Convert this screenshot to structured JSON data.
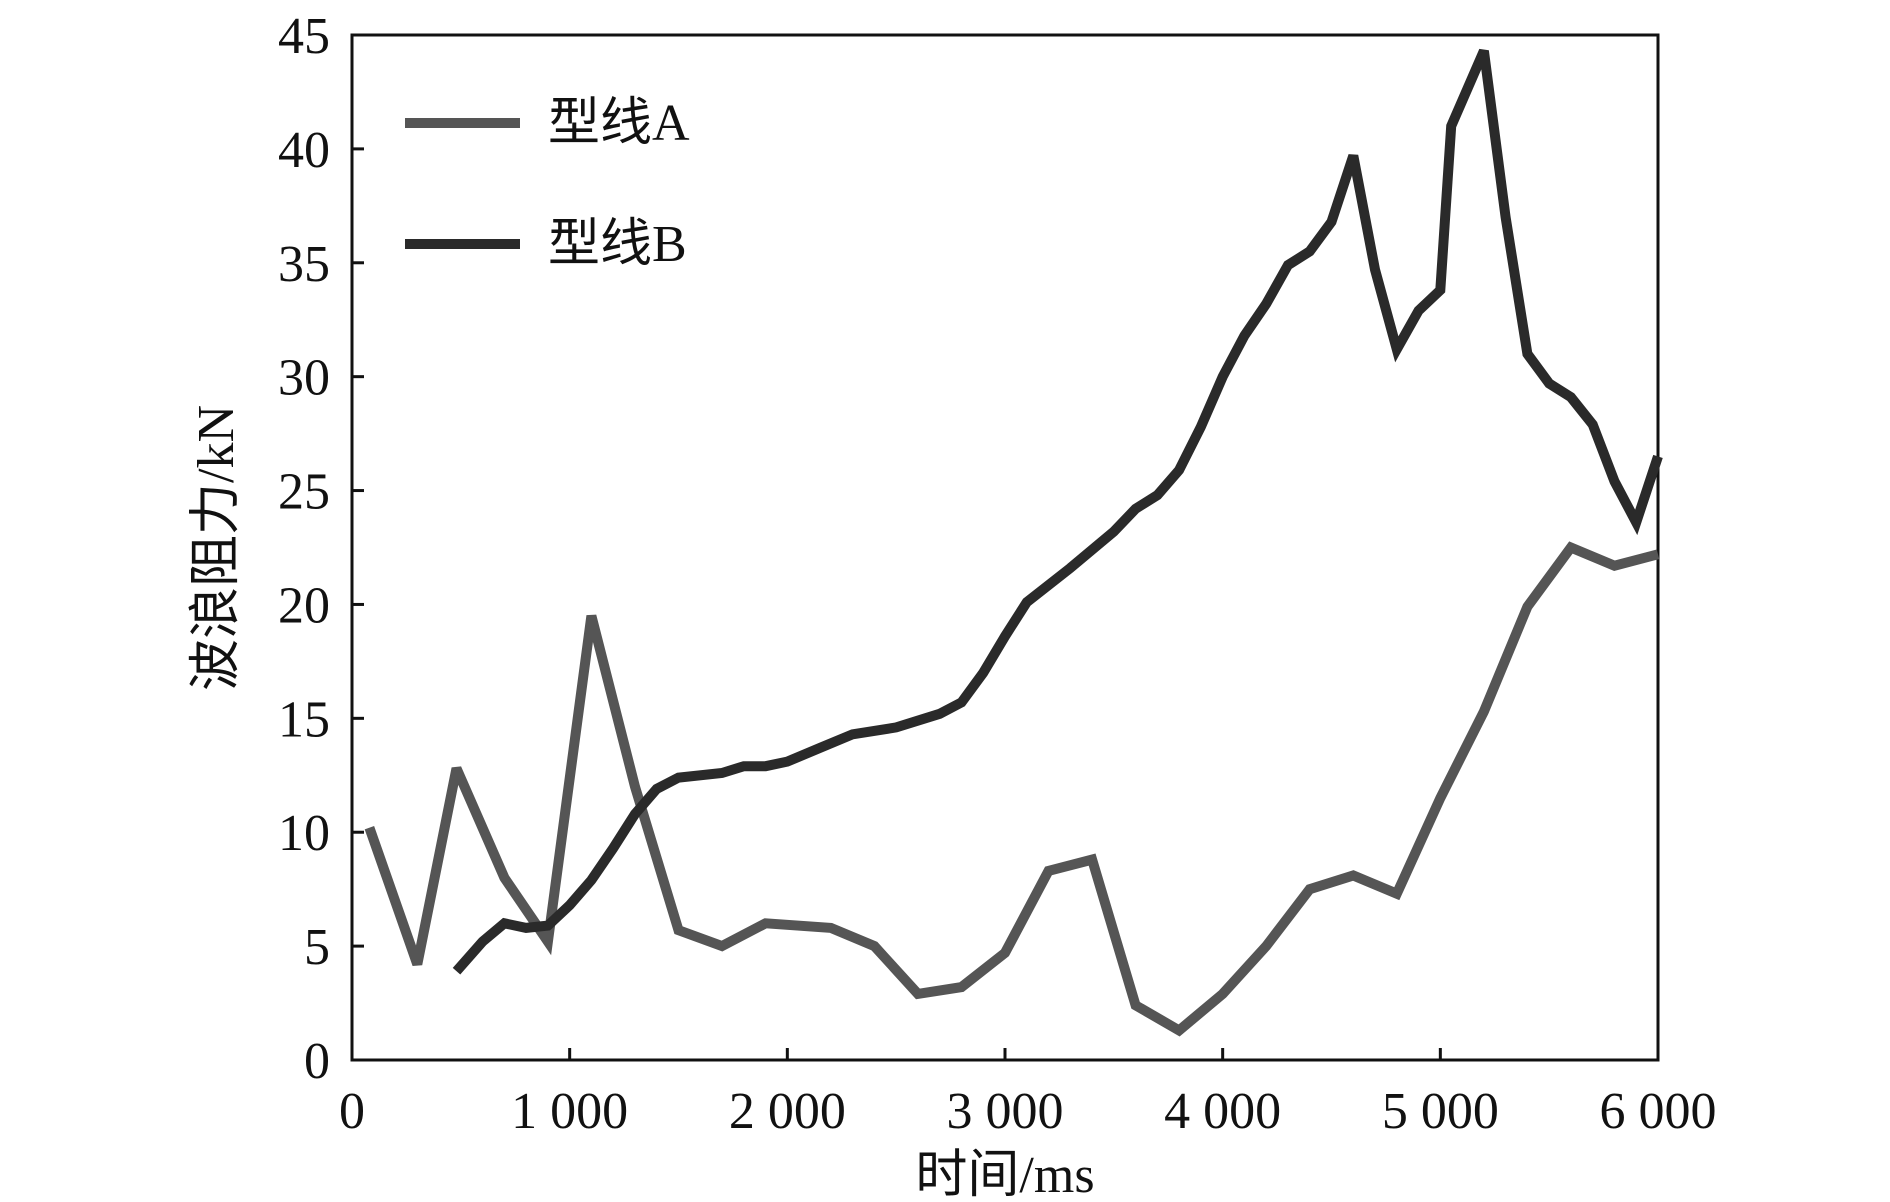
{
  "chart_data": {
    "type": "line",
    "xlabel": "时间/ms",
    "ylabel": "波浪阻力/kN",
    "xlim": [
      0,
      6000
    ],
    "ylim": [
      0,
      45
    ],
    "x_ticks": [
      0,
      1000,
      2000,
      3000,
      4000,
      5000,
      6000
    ],
    "x_tick_labels": [
      "0",
      "1 000",
      "2 000",
      "3 000",
      "4 000",
      "5 000",
      "6 000"
    ],
    "y_ticks": [
      0,
      5,
      10,
      15,
      20,
      25,
      30,
      35,
      40,
      45
    ],
    "y_tick_labels": [
      "0",
      "5",
      "10",
      "15",
      "20",
      "25",
      "30",
      "35",
      "40",
      "45"
    ],
    "grid": false,
    "legend_position": "top-left",
    "series": [
      {
        "name": "型线A",
        "color": "#555555",
        "points": [
          [
            80,
            10.2
          ],
          [
            300,
            4.2
          ],
          [
            480,
            12.8
          ],
          [
            700,
            8.0
          ],
          [
            900,
            5.2
          ],
          [
            1100,
            19.5
          ],
          [
            1300,
            12.0
          ],
          [
            1500,
            5.7
          ],
          [
            1700,
            5.0
          ],
          [
            1900,
            6.0
          ],
          [
            2200,
            5.8
          ],
          [
            2400,
            5.0
          ],
          [
            2600,
            2.9
          ],
          [
            2800,
            3.2
          ],
          [
            3000,
            4.7
          ],
          [
            3200,
            8.3
          ],
          [
            3400,
            8.8
          ],
          [
            3600,
            2.4
          ],
          [
            3800,
            1.3
          ],
          [
            4000,
            2.9
          ],
          [
            4200,
            5.0
          ],
          [
            4400,
            7.5
          ],
          [
            4600,
            8.1
          ],
          [
            4800,
            7.3
          ],
          [
            5000,
            11.5
          ],
          [
            5200,
            15.3
          ],
          [
            5400,
            19.9
          ],
          [
            5600,
            22.5
          ],
          [
            5800,
            21.7
          ],
          [
            6000,
            22.2
          ]
        ]
      },
      {
        "name": "型线B",
        "color": "#2a2a2a",
        "points": [
          [
            480,
            3.9
          ],
          [
            600,
            5.2
          ],
          [
            700,
            6.0
          ],
          [
            800,
            5.8
          ],
          [
            900,
            5.9
          ],
          [
            1000,
            6.8
          ],
          [
            1100,
            7.9
          ],
          [
            1200,
            9.3
          ],
          [
            1300,
            10.8
          ],
          [
            1400,
            11.9
          ],
          [
            1500,
            12.4
          ],
          [
            1700,
            12.6
          ],
          [
            1800,
            12.9
          ],
          [
            1900,
            12.9
          ],
          [
            2000,
            13.1
          ],
          [
            2150,
            13.7
          ],
          [
            2300,
            14.3
          ],
          [
            2500,
            14.6
          ],
          [
            2700,
            15.2
          ],
          [
            2800,
            15.7
          ],
          [
            2900,
            17.0
          ],
          [
            3000,
            18.6
          ],
          [
            3100,
            20.1
          ],
          [
            3300,
            21.6
          ],
          [
            3500,
            23.2
          ],
          [
            3600,
            24.2
          ],
          [
            3700,
            24.8
          ],
          [
            3800,
            25.9
          ],
          [
            3900,
            27.8
          ],
          [
            4000,
            30.0
          ],
          [
            4100,
            31.8
          ],
          [
            4200,
            33.2
          ],
          [
            4300,
            34.9
          ],
          [
            4400,
            35.5
          ],
          [
            4500,
            36.8
          ],
          [
            4600,
            39.7
          ],
          [
            4700,
            34.7
          ],
          [
            4800,
            31.2
          ],
          [
            4900,
            32.9
          ],
          [
            5000,
            33.8
          ],
          [
            5050,
            41.0
          ],
          [
            5200,
            44.3
          ],
          [
            5300,
            37.0
          ],
          [
            5400,
            31.0
          ],
          [
            5500,
            29.7
          ],
          [
            5600,
            29.1
          ],
          [
            5700,
            27.9
          ],
          [
            5800,
            25.4
          ],
          [
            5900,
            23.6
          ],
          [
            6000,
            26.5
          ]
        ]
      }
    ]
  }
}
